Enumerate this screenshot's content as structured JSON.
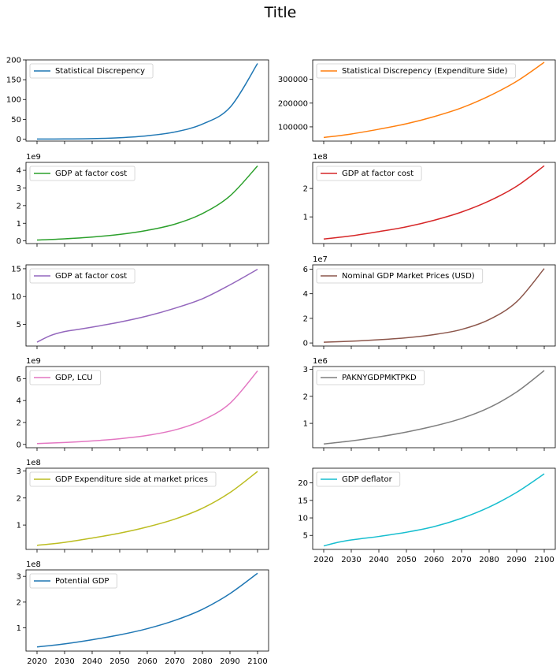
{
  "figure": {
    "title": "Title"
  },
  "chart_data": [
    {
      "type": "line",
      "legend_placement": "upper-left",
      "grid": false,
      "x": [
        2020,
        2030,
        2040,
        2050,
        2060,
        2070,
        2080,
        2090,
        2100
      ],
      "ylim": [
        -5,
        200
      ],
      "yticks": [
        0,
        50,
        100,
        150,
        200
      ],
      "tick_labels": [
        "0",
        "50",
        "100",
        "150",
        "200"
      ],
      "exponent": "",
      "series": [
        {
          "name": "Statistical Discrepency",
          "color": "#1f77b4",
          "values": [
            0.2,
            0.4,
            1.2,
            3.5,
            8.5,
            18,
            38,
            80,
            191
          ]
        }
      ]
    },
    {
      "type": "line",
      "legend_placement": "upper-left",
      "grid": false,
      "x": [
        2020,
        2030,
        2040,
        2050,
        2060,
        2070,
        2080,
        2090,
        2100
      ],
      "ylim": [
        40000,
        382000
      ],
      "yticks": [
        100000,
        200000,
        300000
      ],
      "tick_labels": [
        "100000",
        "200000",
        "300000"
      ],
      "exponent": "",
      "series": [
        {
          "name": "Statistical Discrepency (Expenditure Side)",
          "color": "#ff7f0e",
          "values": [
            55000,
            70000,
            90000,
            113000,
            143000,
            180000,
            230000,
            292000,
            372000
          ]
        }
      ]
    },
    {
      "type": "line",
      "legend_placement": "upper-left",
      "grid": false,
      "x": [
        2020,
        2030,
        2040,
        2050,
        2060,
        2070,
        2080,
        2090,
        2100
      ],
      "ylim": [
        -0.15,
        4.45
      ],
      "yticks": [
        0,
        1,
        2,
        3,
        4
      ],
      "tick_labels": [
        "0",
        "1",
        "2",
        "3",
        "4"
      ],
      "exponent": "1e9",
      "series": [
        {
          "name": "GDP at factor cost",
          "color": "#2ca02c",
          "values": [
            0.05,
            0.12,
            0.22,
            0.37,
            0.6,
            0.95,
            1.55,
            2.55,
            4.25
          ]
        }
      ]
    },
    {
      "type": "line",
      "legend_placement": "upper-left",
      "grid": false,
      "x": [
        2020,
        2030,
        2040,
        2050,
        2060,
        2070,
        2080,
        2090,
        2100
      ],
      "ylim": [
        0.06,
        2.92
      ],
      "yticks": [
        1,
        2
      ],
      "tick_labels": [
        "1",
        "2"
      ],
      "exponent": "1e8",
      "series": [
        {
          "name": "GDP at factor cost",
          "color": "#d62728",
          "values": [
            0.22,
            0.33,
            0.48,
            0.65,
            0.88,
            1.17,
            1.56,
            2.08,
            2.8
          ]
        }
      ]
    },
    {
      "type": "line",
      "legend_placement": "upper-left",
      "grid": false,
      "x": [
        2020,
        2025,
        2030,
        2035,
        2040,
        2050,
        2060,
        2070,
        2080,
        2090,
        2100
      ],
      "ylim": [
        1.1,
        15.7
      ],
      "yticks": [
        5,
        10,
        15
      ],
      "tick_labels": [
        "5",
        "10",
        "15"
      ],
      "exponent": "",
      "series": [
        {
          "name": "GDP at factor cost",
          "color": "#9467bd",
          "values": [
            1.8,
            3.0,
            3.7,
            4.1,
            4.5,
            5.4,
            6.5,
            7.9,
            9.6,
            12.1,
            14.9
          ]
        }
      ]
    },
    {
      "type": "line",
      "legend_placement": "upper-left",
      "grid": false,
      "x": [
        2020,
        2030,
        2040,
        2050,
        2060,
        2070,
        2080,
        2090,
        2100
      ],
      "ylim": [
        -0.25,
        6.35
      ],
      "yticks": [
        0,
        2,
        4,
        6
      ],
      "tick_labels": [
        "0",
        "2",
        "4",
        "6"
      ],
      "exponent": "1e7",
      "series": [
        {
          "name": "Nominal GDP Market Prices (USD)",
          "color": "#8c564b",
          "values": [
            0.06,
            0.14,
            0.26,
            0.42,
            0.68,
            1.1,
            1.9,
            3.35,
            6.05
          ]
        }
      ]
    },
    {
      "type": "line",
      "legend_placement": "upper-left",
      "grid": false,
      "x": [
        2020,
        2030,
        2040,
        2050,
        2060,
        2070,
        2080,
        2090,
        2100
      ],
      "ylim": [
        -0.3,
        7.1
      ],
      "yticks": [
        0,
        2,
        4,
        6
      ],
      "tick_labels": [
        "0",
        "2",
        "4",
        "6"
      ],
      "exponent": "1e9",
      "series": [
        {
          "name": "GDP, LCU",
          "color": "#e377c2",
          "values": [
            0.08,
            0.18,
            0.32,
            0.52,
            0.82,
            1.32,
            2.2,
            3.75,
            6.7
          ]
        }
      ]
    },
    {
      "type": "line",
      "legend_placement": "upper-left",
      "grid": false,
      "x": [
        2020,
        2030,
        2040,
        2050,
        2060,
        2070,
        2080,
        2090,
        2100
      ],
      "ylim": [
        0.1,
        3.1
      ],
      "yticks": [
        1,
        2,
        3
      ],
      "tick_labels": [
        "1",
        "2",
        "3"
      ],
      "exponent": "1e6",
      "series": [
        {
          "name": "PAKNYGDPMKTPKD",
          "color": "#7f7f7f",
          "values": [
            0.24,
            0.35,
            0.5,
            0.68,
            0.9,
            1.18,
            1.58,
            2.16,
            2.95
          ]
        }
      ]
    },
    {
      "type": "line",
      "legend_placement": "upper-left",
      "grid": false,
      "x": [
        2020,
        2030,
        2040,
        2050,
        2060,
        2070,
        2080,
        2090,
        2100
      ],
      "ylim": [
        0.1,
        3.1
      ],
      "yticks": [
        1,
        2,
        3
      ],
      "tick_labels": [
        "1",
        "2",
        "3"
      ],
      "exponent": "1e8",
      "series": [
        {
          "name": "GDP Expenditure side at market prices",
          "color": "#bcbd22",
          "values": [
            0.25,
            0.36,
            0.52,
            0.7,
            0.93,
            1.22,
            1.62,
            2.2,
            2.98
          ]
        }
      ]
    },
    {
      "type": "line",
      "legend_placement": "upper-left",
      "grid": false,
      "x": [
        2020,
        2025,
        2030,
        2035,
        2040,
        2050,
        2060,
        2070,
        2080,
        2090,
        2100
      ],
      "ylim": [
        1.0,
        24.2
      ],
      "yticks": [
        5,
        10,
        15,
        20
      ],
      "tick_labels": [
        "5",
        "10",
        "15",
        "20"
      ],
      "exponent": "",
      "series": [
        {
          "name": "GDP deflator",
          "color": "#17becf",
          "values": [
            2.0,
            3.0,
            3.7,
            4.2,
            4.7,
            5.9,
            7.5,
            9.9,
            13.1,
            17.3,
            22.6
          ]
        }
      ]
    },
    {
      "type": "line",
      "legend_placement": "upper-left",
      "grid": false,
      "x": [
        2020,
        2030,
        2040,
        2050,
        2060,
        2070,
        2080,
        2090,
        2100
      ],
      "ylim": [
        0.1,
        3.25
      ],
      "yticks": [
        1,
        2,
        3
      ],
      "tick_labels": [
        "1",
        "2",
        "3"
      ],
      "exponent": "1e8",
      "series": [
        {
          "name": "Potential GDP",
          "color": "#1f77b4",
          "values": [
            0.26,
            0.38,
            0.54,
            0.73,
            0.97,
            1.29,
            1.72,
            2.33,
            3.12
          ]
        }
      ]
    }
  ],
  "x_axis": {
    "xlim": [
      2016,
      2104
    ],
    "ticks": [
      2020,
      2030,
      2040,
      2050,
      2060,
      2070,
      2080,
      2090,
      2100
    ],
    "tick_labels": [
      "2020",
      "2030",
      "2040",
      "2050",
      "2060",
      "2070",
      "2080",
      "2090",
      "2100"
    ]
  }
}
